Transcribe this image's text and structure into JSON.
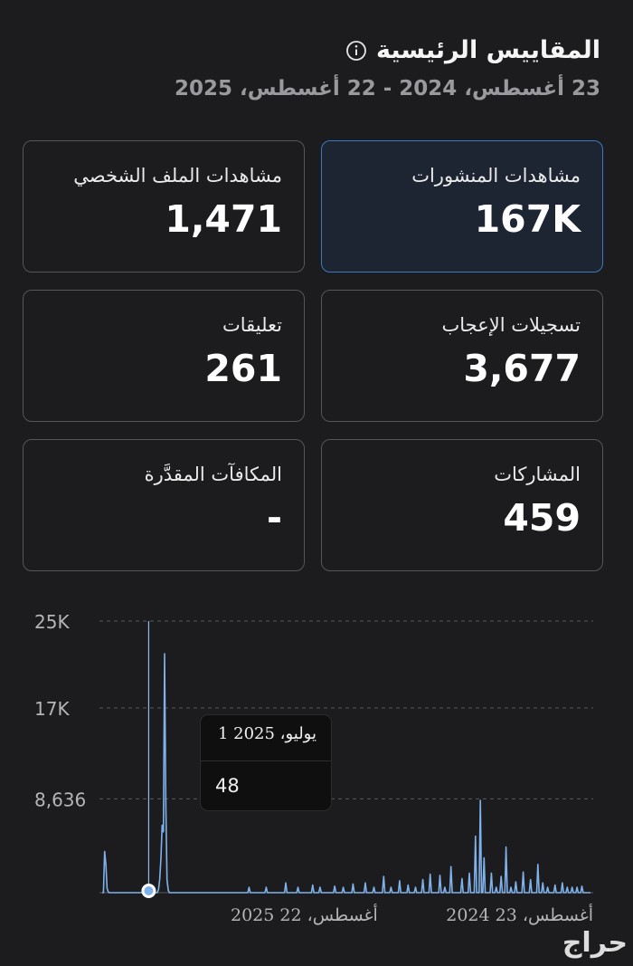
{
  "header": {
    "title": "المقاييس الرئيسية",
    "date_range": "23 أغسطس، 2024 - 22 أغسطس، 2025"
  },
  "metrics": [
    {
      "label": "مشاهدات المنشورات",
      "value": "167K",
      "selected": true
    },
    {
      "label": "مشاهدات الملف الشخصي",
      "value": "1,471",
      "selected": false
    },
    {
      "label": "تسجيلات الإعجاب",
      "value": "3,677",
      "selected": false
    },
    {
      "label": "تعليقات",
      "value": "261",
      "selected": false
    },
    {
      "label": "المشاركات",
      "value": "459",
      "selected": false
    },
    {
      "label": "المكافآت المقدَّرة",
      "value": "-",
      "selected": false
    }
  ],
  "chart_data": {
    "type": "line",
    "y_ticks": [
      "25K",
      "17K",
      "8,636"
    ],
    "y_tick_values": [
      25000,
      17000,
      8636
    ],
    "ylim": [
      0,
      25000
    ],
    "x_tick_labels": [
      "أغسطس، 22 2025",
      "أغسطس، 23 2024"
    ],
    "grid": true,
    "color": "#7fb2ea",
    "reversed_time_axis": true,
    "values": [
      0,
      0,
      3800,
      2600,
      400,
      50,
      0,
      0,
      0,
      0,
      0,
      0,
      0,
      0,
      0,
      0,
      0,
      0,
      0,
      0,
      0,
      0,
      0,
      0,
      0,
      0,
      0,
      0,
      0,
      0,
      0,
      0,
      0,
      0,
      0,
      0,
      0,
      0,
      48,
      0,
      0,
      0,
      0,
      0,
      0,
      0,
      300,
      1200,
      3200,
      6200,
      5600,
      22000,
      8000,
      1200,
      200,
      0,
      0,
      0,
      0,
      0,
      0,
      0,
      0,
      0,
      0,
      0,
      0,
      0,
      0,
      0,
      0,
      0,
      0,
      0,
      0,
      0,
      0,
      0,
      0,
      0,
      0,
      0,
      0,
      0,
      0,
      0,
      0,
      0,
      0,
      0,
      0,
      0,
      0,
      0,
      0,
      0,
      0,
      0,
      0,
      0,
      0,
      0,
      0,
      0,
      0,
      0,
      0,
      0,
      0,
      0,
      0,
      0,
      0,
      0,
      0,
      0,
      0,
      0,
      0,
      0,
      0,
      0,
      0,
      0,
      0,
      0,
      0,
      0,
      0,
      0,
      0,
      0,
      0,
      0,
      0,
      0,
      0,
      0,
      0,
      0,
      0,
      0,
      0,
      0,
      0,
      0,
      0,
      0,
      0,
      0,
      0,
      0,
      0,
      0,
      0,
      0,
      0,
      0,
      0,
      0,
      0,
      0,
      0,
      0,
      0,
      0,
      0,
      0,
      0,
      0,
      0,
      0,
      0,
      0,
      0,
      0,
      0,
      0,
      0,
      0,
      0,
      0,
      0,
      0,
      0,
      0,
      0,
      0,
      0,
      0,
      0,
      0,
      0,
      0,
      0,
      0,
      0,
      0,
      0,
      0,
      0,
      0,
      0,
      0,
      0,
      0,
      0,
      0,
      0,
      0,
      0,
      0,
      0,
      0,
      0,
      0,
      0,
      0,
      0,
      0,
      0,
      0,
      0,
      0,
      0,
      0,
      0,
      0,
      0,
      0,
      0,
      0,
      0,
      0,
      0,
      0,
      0,
      0,
      0,
      0,
      0,
      0,
      0,
      0,
      0,
      0,
      0,
      0,
      0,
      0,
      0,
      0,
      0,
      0,
      0,
      0,
      0,
      0,
      0,
      0,
      0,
      0,
      0,
      0,
      0,
      0,
      0,
      0,
      0,
      0,
      0,
      0,
      0,
      0,
      0,
      0,
      0,
      0,
      0,
      0,
      0,
      0,
      0,
      0,
      0,
      0,
      0,
      0,
      0,
      0,
      0,
      0,
      0,
      0,
      0,
      0,
      0,
      0,
      0,
      0,
      0,
      0,
      0,
      0,
      0,
      0,
      0,
      0,
      0,
      0,
      0,
      0,
      0,
      0,
      0,
      0,
      0,
      0,
      0,
      0,
      0,
      0,
      0,
      0,
      0,
      0,
      0,
      0,
      0,
      0,
      0,
      0,
      0,
      0,
      0,
      0,
      0,
      0,
      0,
      0,
      0,
      0,
      0,
      0,
      0,
      0,
      0,
      0,
      0,
      0,
      0,
      0,
      0,
      0,
      0,
      0,
      0,
      0,
      0,
      0,
      0,
      0,
      0,
      0,
      0,
      0,
      0,
      0,
      0,
      0,
      0,
      0,
      0,
      0,
      0,
      0,
      0,
      0,
      0,
      0,
      0,
      0,
      0,
      0,
      0,
      0,
      0,
      0,
      0,
      0,
      0,
      0,
      0,
      0,
      0,
      0,
      0,
      0,
      0,
      0
    ],
    "selected_point": {
      "date": "يوليو، 2025 1",
      "value": 48
    }
  },
  "tooltip": {
    "date": "يوليو، 2025 1",
    "value": "48"
  },
  "watermark": "حراج"
}
